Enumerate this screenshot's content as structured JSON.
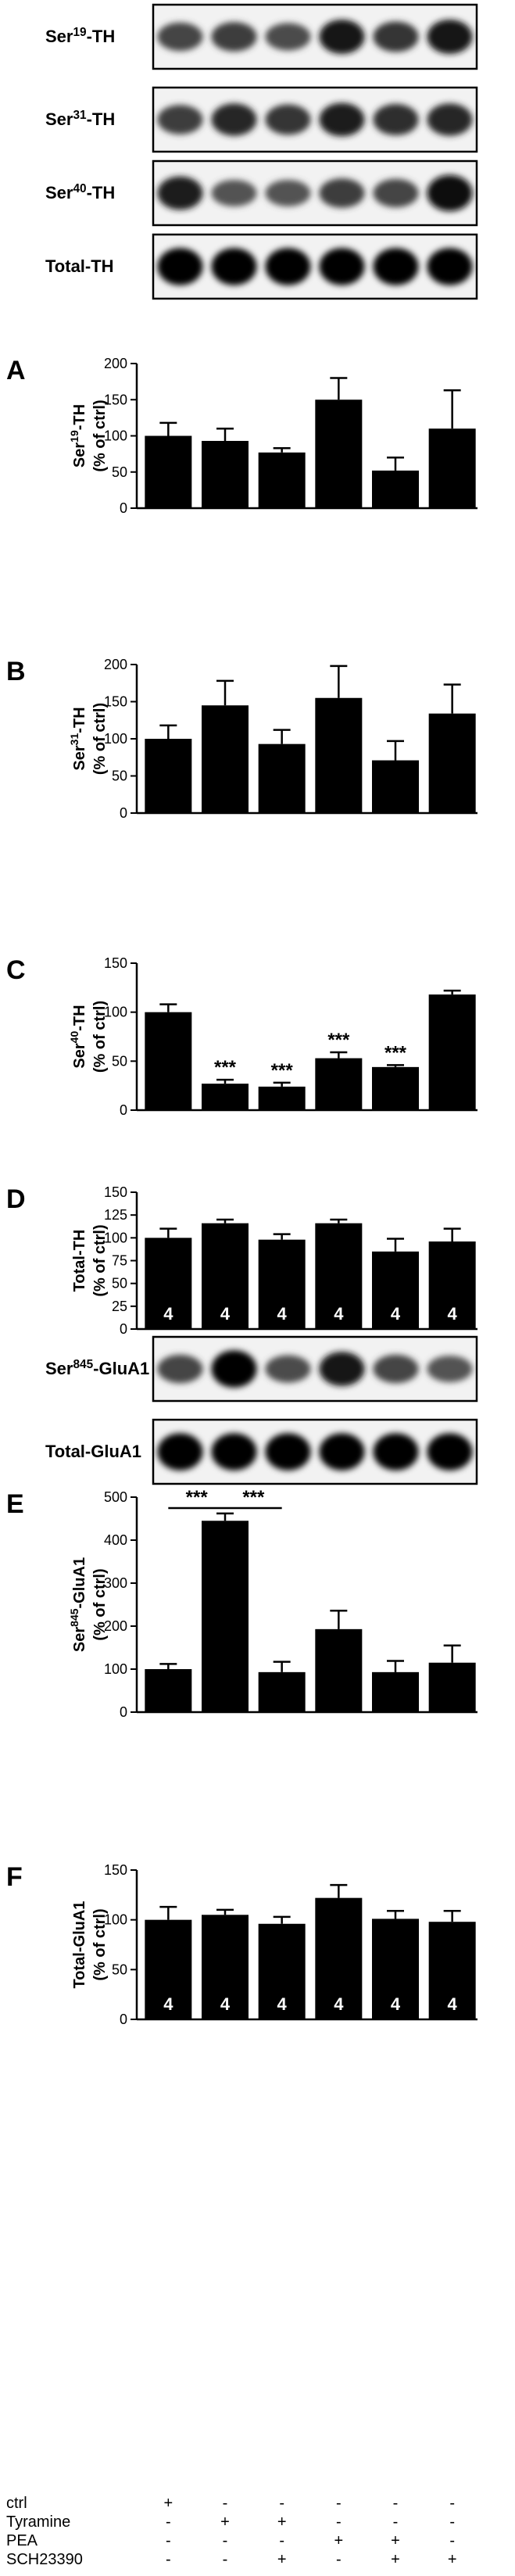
{
  "blots_top": [
    {
      "base": "Ser",
      "sup": "19",
      "suffix": "-TH",
      "intensity": [
        0.55,
        0.6,
        0.5,
        0.85,
        0.65,
        0.85
      ]
    },
    {
      "base": "Ser",
      "sup": "31",
      "suffix": "-TH",
      "intensity": [
        0.6,
        0.75,
        0.65,
        0.8,
        0.7,
        0.75
      ]
    },
    {
      "base": "Ser",
      "sup": "40",
      "suffix": "-TH",
      "intensity": [
        0.8,
        0.45,
        0.45,
        0.6,
        0.55,
        0.95
      ]
    },
    {
      "base": "Total-TH",
      "sup": "",
      "suffix": "",
      "intensity": [
        1,
        1,
        1,
        1,
        1,
        1
      ]
    }
  ],
  "blots_mid": [
    {
      "base": "Ser",
      "sup": "845",
      "suffix": "-GluA1",
      "intensity": [
        0.55,
        1,
        0.5,
        0.85,
        0.55,
        0.45
      ]
    },
    {
      "base": "Total-GluA1",
      "sup": "",
      "suffix": "",
      "intensity": [
        1,
        1,
        1,
        1,
        1,
        1
      ]
    }
  ],
  "chart_data": [
    {
      "panel": "A",
      "type": "bar",
      "ylabel_base": "Ser",
      "ylabel_sup": "19",
      "ylabel_suffix": "-TH",
      "ylabel2": "(% of ctrl)",
      "ylim": [
        0,
        200
      ],
      "yticks": [
        "0",
        "50",
        "100",
        "150",
        "200"
      ],
      "values": [
        100,
        93,
        77,
        150,
        52,
        110
      ],
      "errors": [
        18,
        17,
        6,
        30,
        18,
        53
      ],
      "annotations": [
        "",
        "",
        "",
        "",
        "",
        ""
      ],
      "n_labels": []
    },
    {
      "panel": "B",
      "type": "bar",
      "ylabel_base": "Ser",
      "ylabel_sup": "31",
      "ylabel_suffix": "-TH",
      "ylabel2": "(% of ctrl)",
      "ylim": [
        0,
        200
      ],
      "yticks": [
        "0",
        "50",
        "100",
        "150",
        "200"
      ],
      "values": [
        100,
        145,
        93,
        155,
        71,
        134
      ],
      "errors": [
        18,
        33,
        19,
        43,
        26,
        39
      ],
      "annotations": [
        "",
        "",
        "",
        "",
        "",
        ""
      ],
      "n_labels": []
    },
    {
      "panel": "C",
      "type": "bar",
      "ylabel_base": "Ser",
      "ylabel_sup": "40",
      "ylabel_suffix": "-TH",
      "ylabel2": "(% of ctrl)",
      "ylim": [
        0,
        150
      ],
      "yticks": [
        "0",
        "50",
        "100",
        "150"
      ],
      "values": [
        100,
        27,
        24,
        53,
        44,
        118
      ],
      "errors": [
        8,
        4,
        4,
        6,
        2,
        4
      ],
      "annotations": [
        "",
        "***",
        "***",
        "***",
        "***",
        ""
      ],
      "n_labels": []
    },
    {
      "panel": "D",
      "type": "bar",
      "ylabel_base": "Total-TH",
      "ylabel_sup": "",
      "ylabel_suffix": "",
      "ylabel2": "(% of ctrl)",
      "ylim": [
        0,
        150
      ],
      "yticks": [
        "0",
        "25",
        "50",
        "75",
        "100",
        "125",
        "150"
      ],
      "values": [
        100,
        116,
        98,
        116,
        85,
        96
      ],
      "errors": [
        10,
        4,
        6,
        4,
        14,
        14
      ],
      "annotations": [
        "",
        "",
        "",
        "",
        "",
        ""
      ],
      "n_labels": [
        "4",
        "4",
        "4",
        "4",
        "4",
        "4"
      ]
    },
    {
      "panel": "E",
      "type": "bar",
      "ylabel_base": "Ser",
      "ylabel_sup": "845",
      "ylabel_suffix": "-GluA1",
      "ylabel2": "(% of ctrl)",
      "ylim": [
        0,
        500
      ],
      "yticks": [
        "0",
        "100",
        "200",
        "300",
        "400",
        "500"
      ],
      "values": [
        100,
        445,
        93,
        193,
        93,
        115
      ],
      "errors": [
        12,
        17,
        24,
        43,
        26,
        40
      ],
      "annotations": [
        "",
        "",
        "",
        "",
        "",
        ""
      ],
      "brackets": [
        {
          "from": 0,
          "to": 1,
          "text": "***"
        },
        {
          "from": 1,
          "to": 2,
          "text": "***"
        }
      ],
      "n_labels": []
    },
    {
      "panel": "F",
      "type": "bar",
      "ylabel_base": "Total-GluA1",
      "ylabel_sup": "",
      "ylabel_suffix": "",
      "ylabel2": "(% of ctrl)",
      "ylim": [
        0,
        150
      ],
      "yticks": [
        "0",
        "50",
        "100",
        "150"
      ],
      "values": [
        100,
        105,
        96,
        122,
        101,
        98
      ],
      "errors": [
        13,
        5,
        7,
        13,
        8,
        11
      ],
      "annotations": [
        "",
        "",
        "",
        "",
        "",
        ""
      ],
      "n_labels": [
        "4",
        "4",
        "4",
        "4",
        "4",
        "4"
      ]
    }
  ],
  "conditions": {
    "rows": [
      {
        "label": "ctrl",
        "marks": [
          "+",
          "-",
          "-",
          "-",
          "-",
          "-"
        ]
      },
      {
        "label": "Tyramine",
        "marks": [
          "-",
          "+",
          "+",
          "-",
          "-",
          "-"
        ]
      },
      {
        "label": "PEA",
        "marks": [
          "-",
          "-",
          "-",
          "+",
          "+",
          "-"
        ]
      },
      {
        "label": "SCH23390",
        "marks": [
          "-",
          "-",
          "+",
          "-",
          "+",
          "+"
        ]
      }
    ]
  },
  "colors": {
    "bar": "#000000",
    "blot_bg": "#f2f2f2"
  }
}
